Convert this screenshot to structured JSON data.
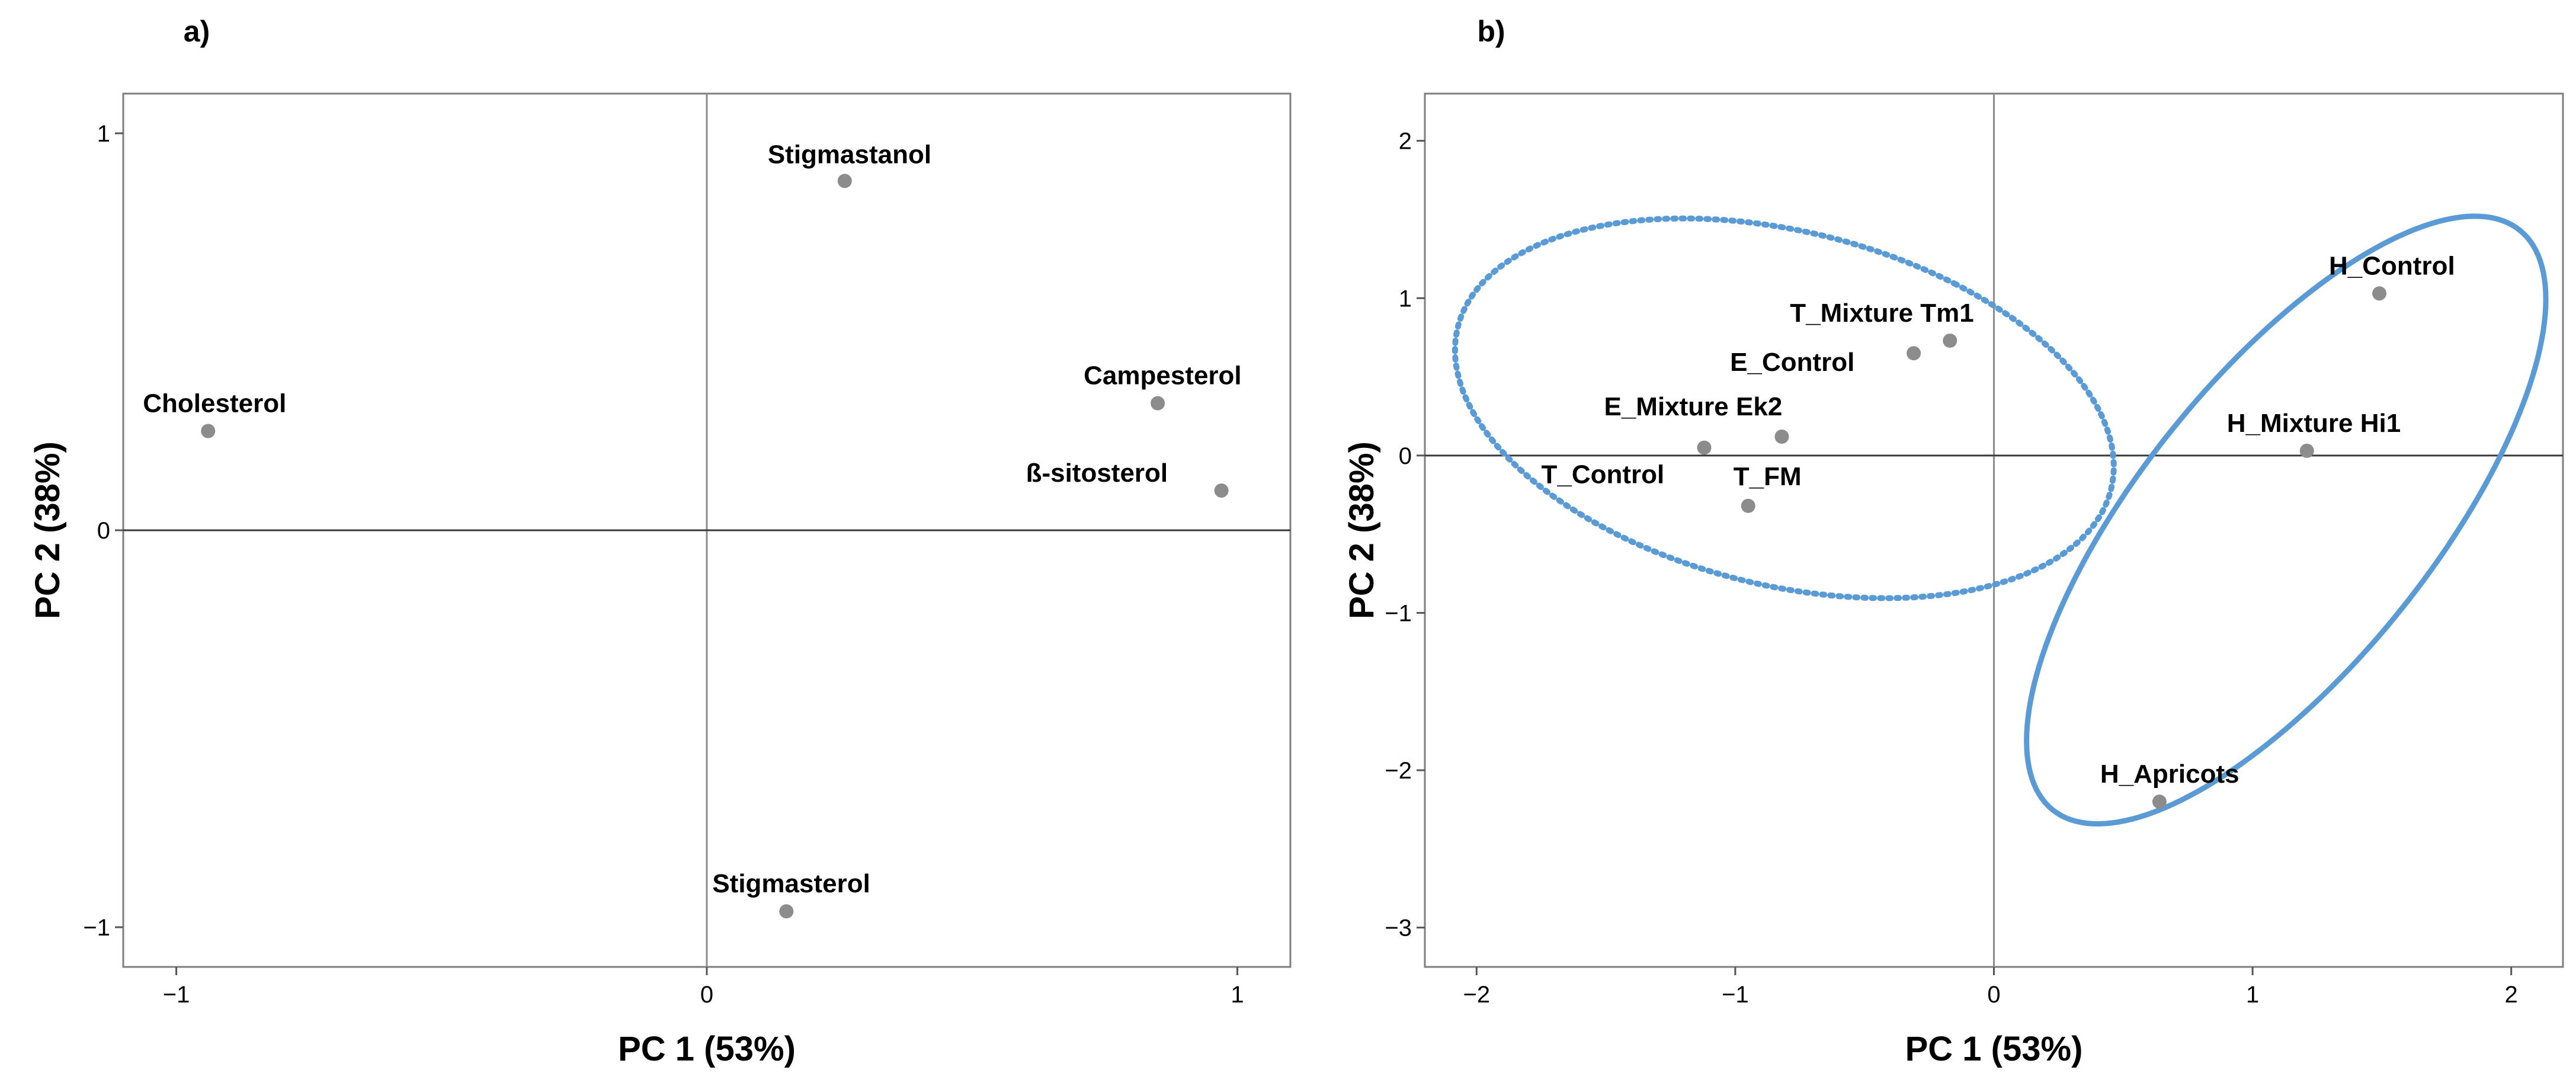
{
  "chart_data": [
    {
      "type": "scatter",
      "panel_label": "a)",
      "xlabel": "PC 1 (53%)",
      "ylabel": "PC 2 (38%)",
      "xlim": [
        -1.1,
        1.1
      ],
      "ylim": [
        -1.1,
        1.1
      ],
      "xticks": [
        {
          "v": -1,
          "label": "−1"
        },
        {
          "v": 0,
          "label": "0"
        },
        {
          "v": 1,
          "label": "1"
        }
      ],
      "yticks": [
        {
          "v": -1,
          "label": "−1"
        },
        {
          "v": 0,
          "label": "0"
        },
        {
          "v": 1,
          "label": "1"
        }
      ],
      "grid": false,
      "reference_lines": {
        "x": 0,
        "y": 0
      },
      "points": [
        {
          "label": "Stigmastanol",
          "x": 0.26,
          "y": 0.88
        },
        {
          "label": "Cholesterol",
          "x": -0.94,
          "y": 0.25
        },
        {
          "label": "Campesterol",
          "x": 0.85,
          "y": 0.32
        },
        {
          "label": "ß-sitosterol",
          "x": 0.97,
          "y": 0.1
        },
        {
          "label": "Stigmasterol",
          "x": 0.15,
          "y": -0.96
        }
      ]
    },
    {
      "type": "scatter",
      "panel_label": "b)",
      "xlabel": "PC 1 (53%)",
      "ylabel": "PC 2 (38%)",
      "xlim": [
        -2.2,
        2.2
      ],
      "ylim": [
        -3.25,
        2.3
      ],
      "xticks": [
        {
          "v": -2,
          "label": "−2"
        },
        {
          "v": -1,
          "label": "−1"
        },
        {
          "v": 0,
          "label": "0"
        },
        {
          "v": 1,
          "label": "1"
        },
        {
          "v": 2,
          "label": "2"
        }
      ],
      "yticks": [
        {
          "v": -3,
          "label": "−3"
        },
        {
          "v": -2,
          "label": "−2"
        },
        {
          "v": -1,
          "label": "−1"
        },
        {
          "v": 0,
          "label": "0"
        },
        {
          "v": 1,
          "label": "1"
        },
        {
          "v": 2,
          "label": "2"
        }
      ],
      "grid": false,
      "reference_lines": {
        "x": 0,
        "y": 0
      },
      "points": [
        {
          "label": "H_Control",
          "x": 1.49,
          "y": 1.03
        },
        {
          "label": "T_Mixture Tm1",
          "x": -0.17,
          "y": 0.73
        },
        {
          "label": "E_Control",
          "x": -0.31,
          "y": 0.65
        },
        {
          "label": "H_Mixture Hi1",
          "x": 1.21,
          "y": 0.03
        },
        {
          "label": "E_Mixture Ek2",
          "x": -0.82,
          "y": 0.12
        },
        {
          "label": "T_Control",
          "x": -1.12,
          "y": 0.05
        },
        {
          "label": "T_FM",
          "x": -0.95,
          "y": -0.32
        },
        {
          "label": "H_Apricots",
          "x": 0.64,
          "y": -2.2
        }
      ],
      "ellipses": [
        {
          "style": "dotted",
          "color": "#5B9BD5",
          "cx": -0.81,
          "cy": 0.3,
          "rx": 1.03,
          "ry": 1.42,
          "angle_deg": 50
        },
        {
          "style": "solid",
          "color": "#5B9BD5",
          "cx": 1.13,
          "cy": -0.41,
          "rx": 0.64,
          "ry": 2.08,
          "angle_deg": -23
        }
      ]
    }
  ]
}
